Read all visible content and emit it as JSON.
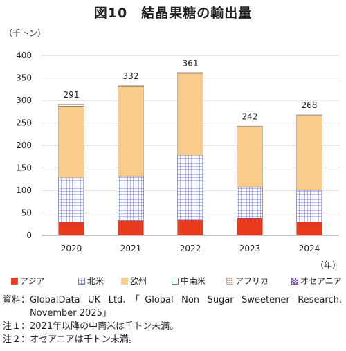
{
  "title": "図10　結晶果糖の輸出量",
  "chart_data": {
    "type": "bar",
    "stacked": true,
    "unit_label": "（千トン）",
    "x_unit_label": "（年）",
    "categories": [
      "2020",
      "2021",
      "2022",
      "2023",
      "2024"
    ],
    "ylim": [
      0,
      400
    ],
    "yticks": [
      0,
      50,
      100,
      150,
      200,
      250,
      300,
      350,
      400
    ],
    "grid": true,
    "legend_position": "bottom",
    "series": [
      {
        "name": "アジア",
        "values": [
          30,
          33,
          34,
          38,
          30
        ],
        "color": "#e8391d",
        "pattern": "solid"
      },
      {
        "name": "北米",
        "values": [
          98,
          98,
          144,
          70,
          70
        ],
        "color": "#4a58c0",
        "pattern": "grid"
      },
      {
        "name": "欧州",
        "values": [
          159,
          200,
          182,
          133,
          166
        ],
        "color": "#f9cc8c",
        "pattern": "solid"
      },
      {
        "name": "中南米",
        "values": [
          3,
          0.5,
          0.5,
          0.5,
          0.5
        ],
        "color": "#1a6b5a",
        "pattern": "outline"
      },
      {
        "name": "アフリカ",
        "values": [
          1,
          0.3,
          0.3,
          0.3,
          0.3
        ],
        "color": "#d98a7a",
        "pattern": "dots"
      },
      {
        "name": "オセアニア",
        "values": [
          0,
          0,
          0,
          0,
          0
        ],
        "color": "#6b3aa0",
        "pattern": "cross"
      }
    ],
    "totals": [
      291,
      332,
      361,
      242,
      268
    ]
  },
  "notes": [
    {
      "key": "資料：",
      "text": "GlobalData UK Ltd.「Global Non Sugar Sweetener Research, November 2025」"
    },
    {
      "key": "注１：",
      "text": "2021年以降の中南米は千トン未満。"
    },
    {
      "key": "注２：",
      "text": "オセアニアは千トン未満。"
    }
  ]
}
